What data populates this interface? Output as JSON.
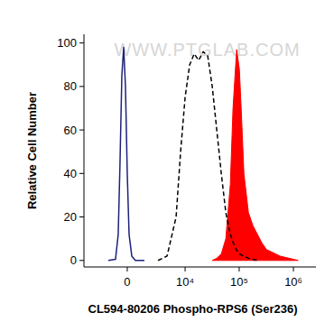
{
  "chart_data": {
    "type": "line",
    "watermark": "WWW.PTGLAB.COM",
    "x_label": "CL594-80206 Phospho-RPS6 (Ser236)",
    "y_label": "Relative Cell Number",
    "log": "x",
    "grid": false,
    "xlim": [
      -5300,
      2600000
    ],
    "ylim": [
      -3,
      104
    ],
    "xticks": [
      0,
      {
        "value": 10000,
        "label": "10⁴"
      },
      {
        "value": 100000,
        "label": "10⁵"
      },
      {
        "value": 1000000,
        "label": "10⁶"
      }
    ],
    "yticks": [
      0,
      20,
      40,
      60,
      80,
      100
    ],
    "series": [
      {
        "color": "#1c237a",
        "line_style": "solid",
        "type": "line",
        "x": [
          -1548,
          -900,
          -680,
          -540,
          -401,
          -266,
          -133,
          0,
          133,
          334,
          609,
          1377
        ],
        "values": [
          0,
          0.5,
          12,
          45,
          85,
          98,
          80,
          40,
          12,
          2,
          0,
          0
        ]
      },
      {
        "color": "#000000",
        "line_style": "dashed",
        "type": "line",
        "x": [
          2963,
          4527,
          6764,
          8235,
          10000,
          12180,
          14760,
          17890,
          21680,
          26280,
          31860,
          38600,
          46800,
          56700,
          68700,
          83200,
          100800,
          122200,
          148000,
          217100
        ],
        "values": [
          0,
          2,
          20,
          50,
          75,
          90,
          95,
          92,
          96,
          94,
          80,
          60,
          40,
          22,
          12,
          6,
          3,
          2,
          1,
          0
        ]
      },
      {
        "color": "#ff0000",
        "line_style": "solid",
        "type": "area",
        "x": [
          31860,
          38600,
          46800,
          56700,
          68700,
          77000,
          89800,
          100800,
          108800,
          122200,
          148000,
          179200,
          217100,
          263000,
          318700,
          386000,
          467500,
          566400,
          831500,
          1220000
        ],
        "values": [
          0,
          1,
          3,
          10,
          35,
          70,
          97,
          88,
          70,
          40,
          22,
          16,
          12,
          8,
          5,
          4,
          3,
          2,
          1,
          0
        ]
      }
    ]
  }
}
